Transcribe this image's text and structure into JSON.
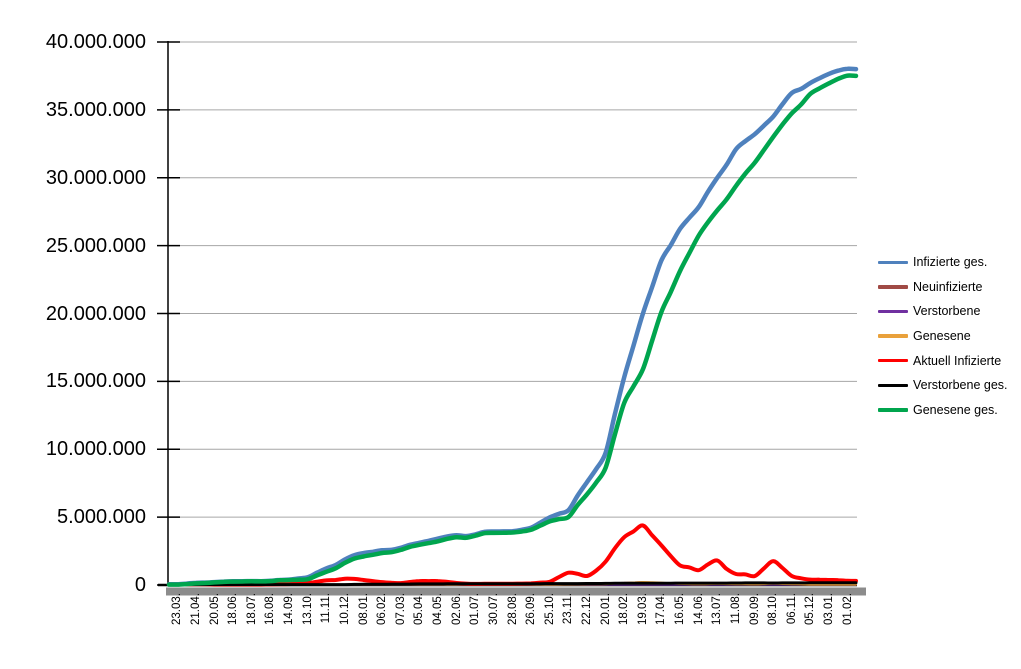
{
  "colors": {
    "background": "#FFFFFF",
    "gridline": "#A6A6A6",
    "axis": "#000000",
    "axis_shadow": "#8C8C8C",
    "label_text": "#000000"
  },
  "chart_data": {
    "type": "line",
    "title": "",
    "legend_position": "right",
    "grid": true,
    "categories": [
      "23.03.",
      "21.04.",
      "20.05.",
      "18.06.",
      "18.07.",
      "16.08.",
      "14.09.",
      "13.10.",
      "11.11.",
      "10.12.",
      "08.01.",
      "06.02.",
      "07.03.",
      "05.04.",
      "04.05.",
      "02.06.",
      "01.07.",
      "30.07.",
      "28.08.",
      "26.09.",
      "25.10.",
      "23.11.",
      "22.12.",
      "20.01.",
      "18.02.",
      "19.03.",
      "17.04.",
      "16.05.",
      "14.06.",
      "13.07.",
      "11.08.",
      "09.09.",
      "08.10.",
      "06.11.",
      "05.12.",
      "03.01.",
      "01.02."
    ],
    "y_axis": {
      "min": 0,
      "max": 40000000,
      "step": 5000000,
      "max_millions": 40,
      "step_millions": 5,
      "tick_labels": [
        "0",
        "5.000.000",
        "10.000.000",
        "15.000.000",
        "20.000.000",
        "25.000.000",
        "30.000.000",
        "35.000.000",
        "40.000.000"
      ]
    },
    "series": [
      {
        "name": "Infizierte ges.",
        "color": "#4F81BD",
        "width": 4.5,
        "wiggle": 1.0,
        "values_millions": [
          0.06,
          0.16,
          0.2,
          0.27,
          0.3,
          0.32,
          0.36,
          0.6,
          1.25,
          1.85,
          2.3,
          2.6,
          2.8,
          3.0,
          3.45,
          3.7,
          3.75,
          3.85,
          4.0,
          4.3,
          4.9,
          5.5,
          7.6,
          9.8,
          15.2,
          20.0,
          24.0,
          26.2,
          27.8,
          30.0,
          32.2,
          33.1,
          34.5,
          36.3,
          37.0,
          37.6,
          38.0
        ]
      },
      {
        "name": "Neuinfizierte",
        "color": "#A04A45",
        "width": 2,
        "wiggle": 0.3,
        "values_millions": [
          0.01,
          0.0,
          0.0,
          0.0,
          0.0,
          0.0,
          0.01,
          0.01,
          0.02,
          0.02,
          0.02,
          0.01,
          0.01,
          0.02,
          0.02,
          0.01,
          0.0,
          0.0,
          0.01,
          0.01,
          0.02,
          0.05,
          0.05,
          0.09,
          0.16,
          0.21,
          0.15,
          0.06,
          0.04,
          0.09,
          0.05,
          0.04,
          0.1,
          0.05,
          0.03,
          0.02,
          0.02
        ]
      },
      {
        "name": "Verstorbene",
        "color": "#7030A0",
        "width": 2,
        "wiggle": 0.3,
        "values_millions": [
          0.0,
          0.01,
          0.0,
          0.0,
          0.0,
          0.0,
          0.0,
          0.0,
          0.01,
          0.01,
          0.01,
          0.01,
          0.01,
          0.0,
          0.01,
          0.0,
          0.0,
          0.0,
          0.0,
          0.0,
          0.0,
          0.01,
          0.01,
          0.01,
          0.01,
          0.01,
          0.01,
          0.0,
          0.0,
          0.0,
          0.0,
          0.0,
          0.0,
          0.0,
          0.0,
          0.0,
          0.0
        ]
      },
      {
        "name": "Genesene",
        "color": "#E9A13B",
        "width": 2,
        "wiggle": 0.3,
        "values_millions": [
          0.0,
          0.01,
          0.0,
          0.0,
          0.0,
          0.0,
          0.0,
          0.01,
          0.02,
          0.02,
          0.02,
          0.02,
          0.01,
          0.02,
          0.02,
          0.01,
          0.01,
          0.0,
          0.01,
          0.01,
          0.01,
          0.04,
          0.05,
          0.07,
          0.14,
          0.22,
          0.18,
          0.08,
          0.05,
          0.08,
          0.06,
          0.04,
          0.09,
          0.06,
          0.03,
          0.02,
          0.02
        ]
      },
      {
        "name": "Aktuell Infizierte",
        "color": "#FF0000",
        "width": 4,
        "wiggle": 1.2,
        "values_millions": [
          0.04,
          0.06,
          0.03,
          0.02,
          0.03,
          0.04,
          0.06,
          0.15,
          0.35,
          0.45,
          0.35,
          0.22,
          0.15,
          0.26,
          0.3,
          0.15,
          0.08,
          0.08,
          0.1,
          0.13,
          0.22,
          0.9,
          0.68,
          1.8,
          3.4,
          4.4,
          3.0,
          1.4,
          1.05,
          1.8,
          0.9,
          0.6,
          1.75,
          0.7,
          0.4,
          0.35,
          0.3
        ]
      },
      {
        "name": "Verstorbene ges.",
        "color": "#000000",
        "width": 3,
        "wiggle": 0.3,
        "values_millions": [
          0.0,
          0.01,
          0.01,
          0.01,
          0.01,
          0.01,
          0.01,
          0.02,
          0.02,
          0.03,
          0.05,
          0.06,
          0.07,
          0.08,
          0.08,
          0.09,
          0.09,
          0.09,
          0.09,
          0.09,
          0.1,
          0.1,
          0.11,
          0.12,
          0.12,
          0.13,
          0.13,
          0.14,
          0.14,
          0.14,
          0.15,
          0.15,
          0.15,
          0.16,
          0.16,
          0.16,
          0.17
        ]
      },
      {
        "name": "Genesene ges.",
        "color": "#00A54E",
        "width": 4.5,
        "wiggle": 1.0,
        "values_millions": [
          0.02,
          0.12,
          0.18,
          0.25,
          0.28,
          0.3,
          0.33,
          0.45,
          1.0,
          1.6,
          2.05,
          2.4,
          2.65,
          2.85,
          3.25,
          3.55,
          3.65,
          3.75,
          3.9,
          4.15,
          4.6,
          5.0,
          6.7,
          8.7,
          13.3,
          15.9,
          20.2,
          23.1,
          25.7,
          27.6,
          29.5,
          31.0,
          33.0,
          34.8,
          36.2,
          36.9,
          37.5
        ]
      }
    ]
  }
}
